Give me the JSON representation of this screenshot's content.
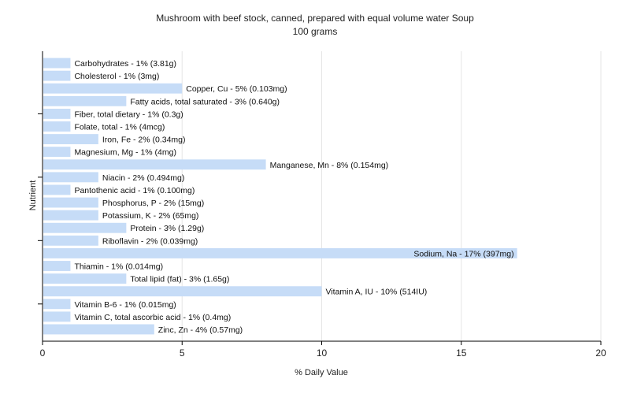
{
  "chart_data": {
    "type": "bar",
    "orientation": "horizontal",
    "title": "Mushroom with beef stock, canned, prepared with equal volume water Soup",
    "subtitle": "100 grams",
    "xlabel": "% Daily Value",
    "ylabel": "Nutrient",
    "xlim": [
      0,
      20
    ],
    "xticks": [
      0,
      5,
      10,
      15,
      20
    ],
    "grid": true,
    "bar_color": "#c6dcf7",
    "categories": [
      "Carbohydrates",
      "Cholesterol",
      "Copper, Cu",
      "Fatty acids, total saturated",
      "Fiber, total dietary",
      "Folate, total",
      "Iron, Fe",
      "Magnesium, Mg",
      "Manganese, Mn",
      "Niacin",
      "Pantothenic acid",
      "Phosphorus, P",
      "Potassium, K",
      "Protein",
      "Riboflavin",
      "Sodium, Na",
      "Thiamin",
      "Total lipid (fat)",
      "Vitamin A, IU",
      "Vitamin B-6",
      "Vitamin C, total ascorbic acid",
      "Zinc, Zn"
    ],
    "values": [
      1,
      1,
      5,
      3,
      1,
      1,
      2,
      1,
      8,
      2,
      1,
      2,
      2,
      3,
      2,
      17,
      1,
      3,
      10,
      1,
      1,
      4
    ],
    "labels": [
      "Carbohydrates - 1% (3.81g)",
      "Cholesterol - 1% (3mg)",
      "Copper, Cu - 5% (0.103mg)",
      "Fatty acids, total saturated - 3% (0.640g)",
      "Fiber, total dietary - 1% (0.3g)",
      "Folate, total - 1% (4mcg)",
      "Iron, Fe - 2% (0.34mg)",
      "Magnesium, Mg - 1% (4mg)",
      "Manganese, Mn - 8% (0.154mg)",
      "Niacin - 2% (0.494mg)",
      "Pantothenic acid - 1% (0.100mg)",
      "Phosphorus, P - 2% (15mg)",
      "Potassium, K - 2% (65mg)",
      "Protein - 3% (1.29g)",
      "Riboflavin - 2% (0.039mg)",
      "Sodium, Na - 17% (397mg)",
      "Thiamin - 1% (0.014mg)",
      "Total lipid (fat) - 3% (1.65g)",
      "Vitamin A, IU - 10% (514IU)",
      "Vitamin B-6 - 1% (0.015mg)",
      "Vitamin C, total ascorbic acid - 1% (0.4mg)",
      "Zinc, Zn - 4% (0.57mg)"
    ]
  }
}
